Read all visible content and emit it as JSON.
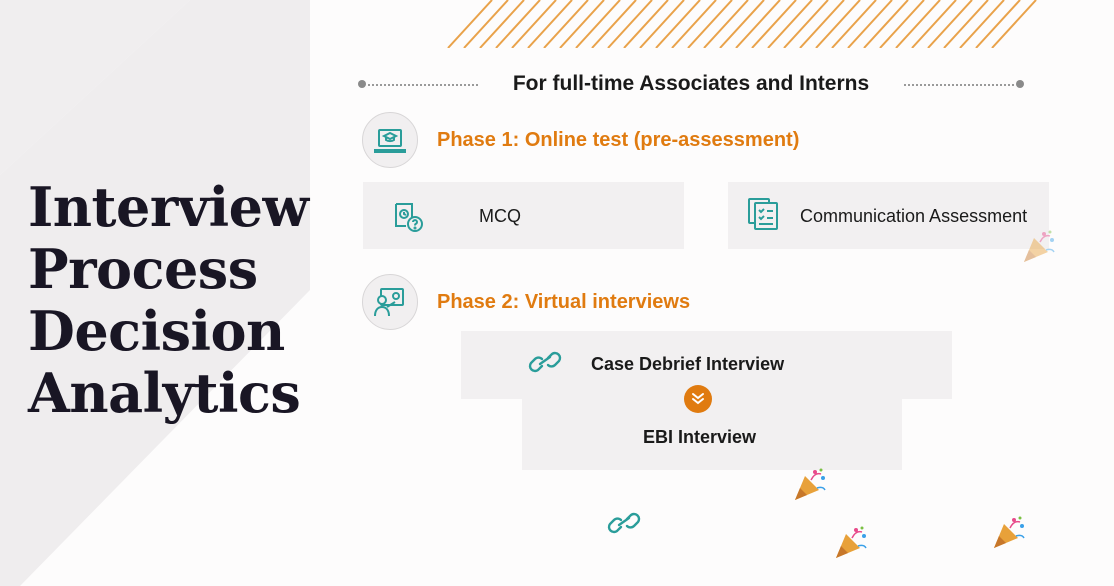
{
  "slide": {
    "title_lines": [
      "Interview",
      "Process",
      "Decision",
      "Analytics"
    ],
    "audience_heading": "For full-time Associates and Interns",
    "phase1": {
      "label": "Phase 1: Online test (pre-assessment)",
      "icon": "laptop-graduation-cap-icon",
      "items": [
        "MCQ",
        "Communication Assessment"
      ]
    },
    "phase2": {
      "label": "Phase 2: Virtual interviews",
      "icon": "presenter-board-icon",
      "steps": [
        "Case Debrief Interview",
        "EBI Interview"
      ]
    },
    "colors": {
      "accent_orange": "#e07b10",
      "teal_icon": "#2a9d9a",
      "title_ink": "#191624",
      "card_bg": "#f2f0f1"
    }
  }
}
